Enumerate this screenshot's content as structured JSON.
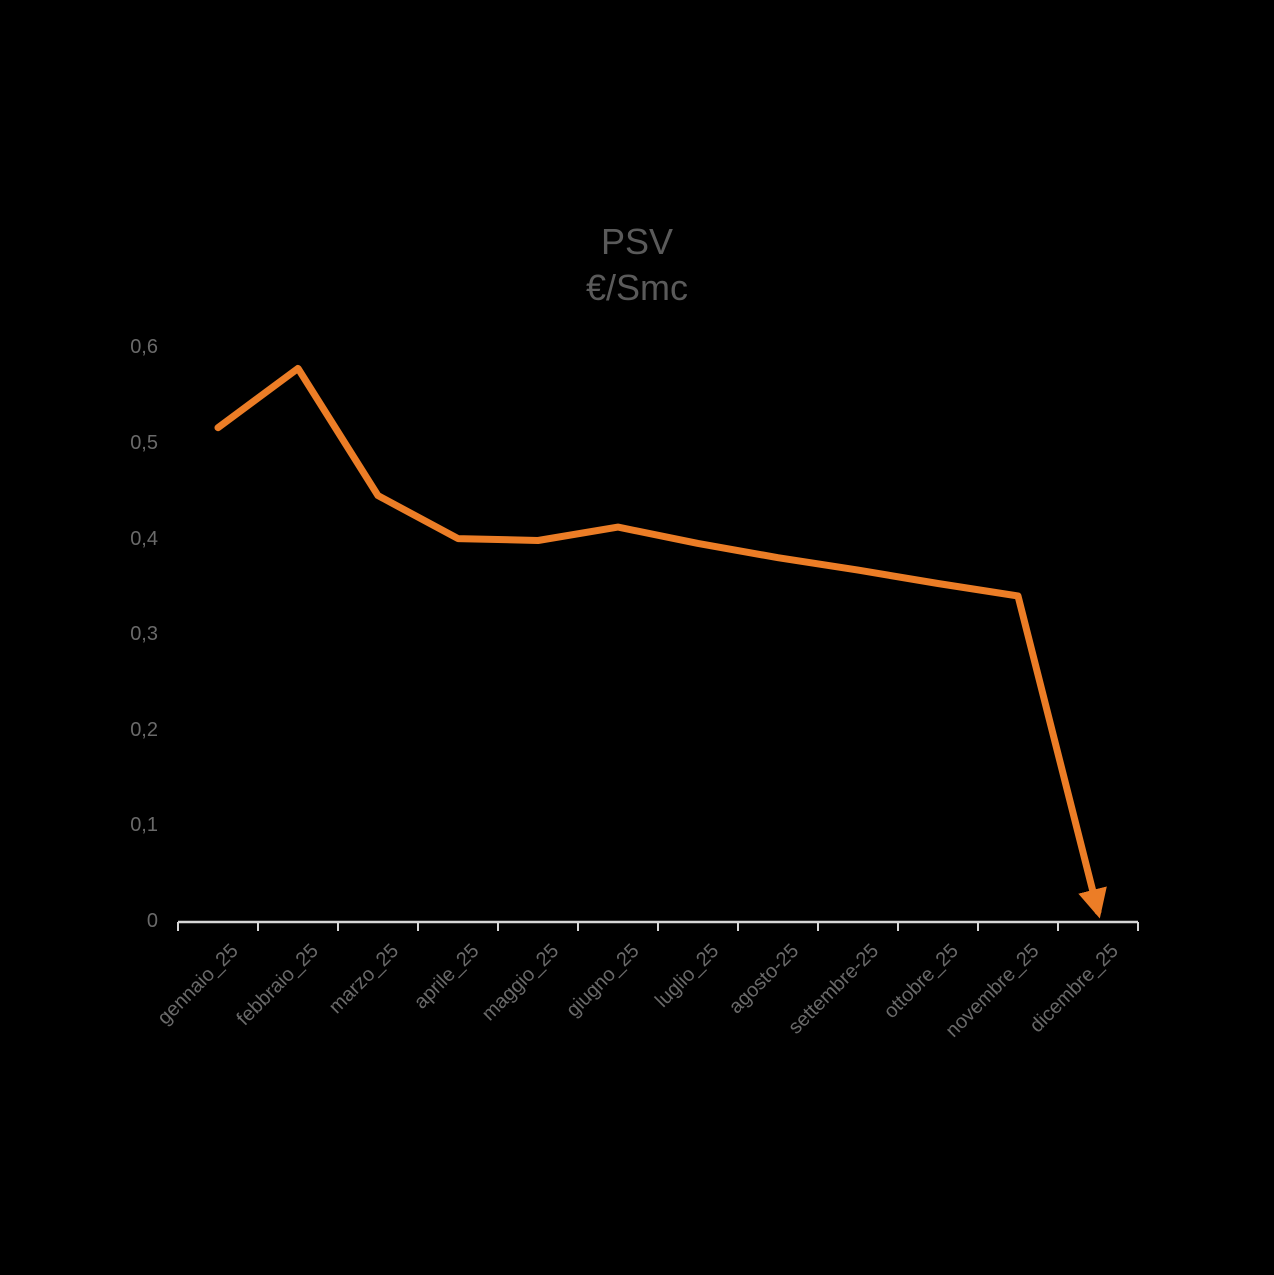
{
  "background": "#000000",
  "chart_data": {
    "type": "line",
    "title": "PSV",
    "subtitle": "€/Smc",
    "title_color": "#5A5A5A",
    "label_color": "#6A6A6A",
    "axis_line_color": "#D6D6D6",
    "grid": false,
    "legend": "none",
    "decimal_separator": ",",
    "categories": [
      "gennaio_25",
      "febbraio_25",
      "marzo_25",
      "aprile_25",
      "maggio_25",
      "giugno_25",
      "luglio_25",
      "agosto-25",
      "settembre-25",
      "ottobre_25",
      "novembre_25",
      "dicembre_25"
    ],
    "series": [
      {
        "name": "PSV",
        "color": "#EC7D26",
        "values": [
          0.516,
          0.578,
          0.445,
          0.4,
          0.398,
          0.412,
          0.395,
          0.38,
          0.367,
          0.353,
          0.34,
          0.01
        ],
        "end_cap": "arrow",
        "annotation": "line ends with a downward arrow indicating a drop to ~0 in dicembre_25"
      }
    ],
    "ylim": [
      0,
      0.6
    ],
    "ytick_step": 0.1,
    "ytick_labels": [
      "0",
      "0,1",
      "0,2",
      "0,3",
      "0,4",
      "0,5",
      "0,6"
    ],
    "xlabel": "",
    "ylabel": ""
  }
}
